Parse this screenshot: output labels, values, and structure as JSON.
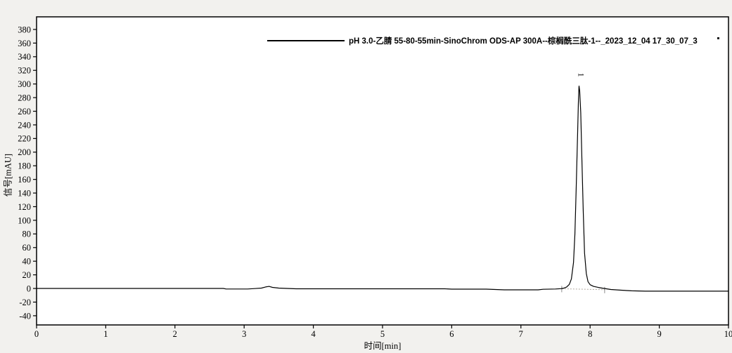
{
  "figure": {
    "background_color": "#f2f1ee",
    "plot_background_color": "#ffffff",
    "frame_color": "#000000"
  },
  "chart_data": {
    "type": "line",
    "title": "",
    "xlabel": "时间[min]",
    "ylabel": "信号[mAU]",
    "xlim": [
      0,
      10
    ],
    "ylim": [
      -53.5,
      398.5
    ],
    "xticks": [
      0,
      1,
      2,
      3,
      4,
      5,
      6,
      7,
      8,
      9,
      10
    ],
    "yticks": [
      -40,
      -20,
      0,
      20,
      40,
      60,
      80,
      100,
      120,
      140,
      160,
      180,
      200,
      220,
      240,
      260,
      280,
      300,
      320,
      340,
      360,
      380
    ],
    "grid": false,
    "legend_position": "top-center",
    "series": [
      {
        "name": "pH 3.0-乙腈 55-80-55min-SinoChrom ODS-AP 300A--棕榈酰三肽-1--_2023_12_04 17_30_07_3",
        "color": "#000000",
        "points": [
          [
            0.0,
            0
          ],
          [
            0.5,
            0
          ],
          [
            1.0,
            0
          ],
          [
            1.5,
            0
          ],
          [
            2.0,
            0
          ],
          [
            2.5,
            0
          ],
          [
            2.7,
            0
          ],
          [
            2.74,
            -0.8
          ],
          [
            3.05,
            -0.8
          ],
          [
            3.15,
            -0.2
          ],
          [
            3.25,
            0.6
          ],
          [
            3.31,
            2.2
          ],
          [
            3.36,
            3.0
          ],
          [
            3.41,
            1.6
          ],
          [
            3.5,
            0.6
          ],
          [
            3.62,
            0.0
          ],
          [
            3.75,
            -0.5
          ],
          [
            4.2,
            -0.5
          ],
          [
            5.0,
            -0.5
          ],
          [
            5.9,
            -0.5
          ],
          [
            6.0,
            -1.0
          ],
          [
            6.5,
            -1.0
          ],
          [
            6.76,
            -2.0
          ],
          [
            7.0,
            -2.0
          ],
          [
            7.25,
            -2.0
          ],
          [
            7.32,
            -1.2
          ],
          [
            7.5,
            -0.8
          ],
          [
            7.58,
            -0.3
          ],
          [
            7.62,
            0.5
          ],
          [
            7.66,
            2
          ],
          [
            7.7,
            6
          ],
          [
            7.73,
            14
          ],
          [
            7.76,
            38
          ],
          [
            7.78,
            80
          ],
          [
            7.8,
            150
          ],
          [
            7.82,
            230
          ],
          [
            7.83,
            272
          ],
          [
            7.838,
            295
          ],
          [
            7.84,
            297
          ],
          [
            7.85,
            290
          ],
          [
            7.865,
            258
          ],
          [
            7.88,
            195
          ],
          [
            7.9,
            115
          ],
          [
            7.92,
            52
          ],
          [
            7.945,
            22
          ],
          [
            7.97,
            10
          ],
          [
            8.0,
            5.5
          ],
          [
            8.05,
            3
          ],
          [
            8.12,
            1.5
          ],
          [
            8.2,
            0
          ],
          [
            8.3,
            -1.5
          ],
          [
            8.45,
            -2.5
          ],
          [
            8.6,
            -3.5
          ],
          [
            8.8,
            -4
          ],
          [
            9.2,
            -4
          ],
          [
            10.0,
            -4
          ]
        ]
      }
    ],
    "peaks": [
      {
        "label": "1",
        "time_min": 7.84,
        "height_mAU": 297
      }
    ],
    "integration_baseline": {
      "from": [
        7.59,
        -0.4
      ],
      "to": [
        8.21,
        -1.8
      ],
      "style": "dotted",
      "color": "#b0a89e",
      "marker_color": "#8a8a8a"
    }
  }
}
